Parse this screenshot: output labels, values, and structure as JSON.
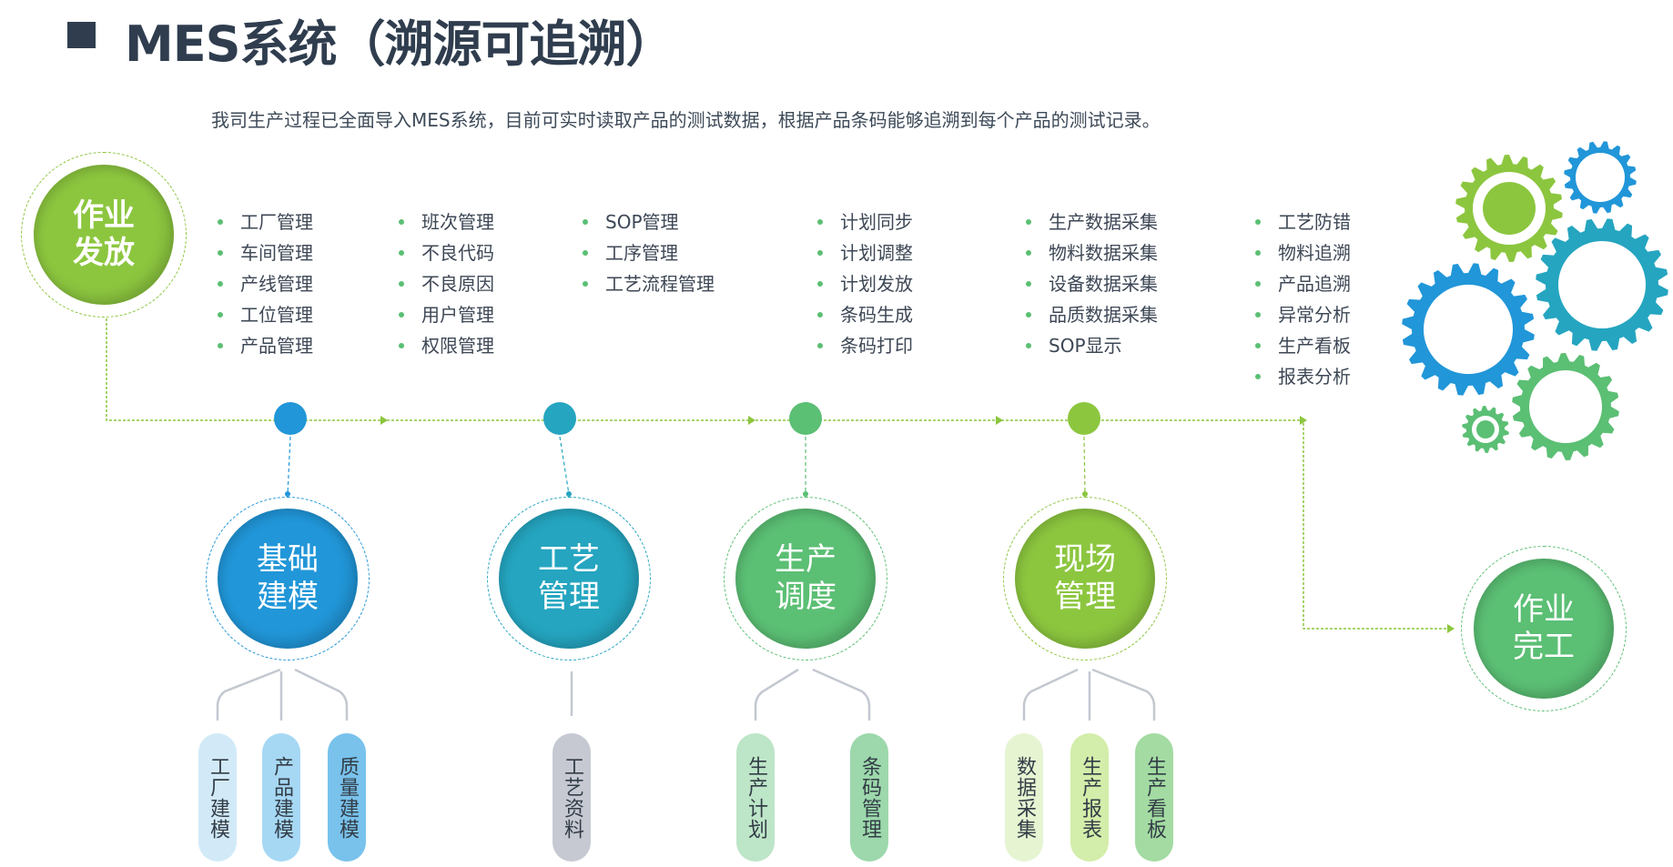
{
  "title": "MES系统（溯源可追溯）",
  "subtitle": "我司生产过程已全面导入MES系统，目前可实时读取产品的测试数据，根据产品条码能够追溯到每个产品的测试记录。",
  "start": {
    "label": "作业\n发放",
    "color": "#8cc63f"
  },
  "end": {
    "label": "作业\n完工",
    "color": "#5bbf74"
  },
  "columns": [
    [
      "工厂管理",
      "车间管理",
      "产线管理",
      "工位管理",
      "产品管理"
    ],
    [
      "班次管理",
      "不良代码",
      "不良原因",
      "用户管理",
      "权限管理"
    ],
    [
      "SOP管理",
      "工序管理",
      "工艺流程管理"
    ],
    [
      "计划同步",
      "计划调整",
      "计划发放",
      "条码生成",
      "条码打印"
    ],
    [
      "生产数据采集",
      "物料数据采集",
      "设备数据采集",
      "品质数据采集",
      "SOP显示"
    ],
    [
      "工艺防错",
      "物料追溯",
      "产品追溯",
      "异常分析",
      "生产看板",
      "报表分析"
    ]
  ],
  "stages": [
    {
      "label": "基础\n建模",
      "color": "#2196d8",
      "children": [
        {
          "label": "工厂建模",
          "color": "#d2eaf8"
        },
        {
          "label": "产品建模",
          "color": "#a6d8f4"
        },
        {
          "label": "质量建模",
          "color": "#78c2ec"
        }
      ]
    },
    {
      "label": "工艺\n管理",
      "color": "#25a5c0",
      "children": [
        {
          "label": "工艺资料",
          "color": "#c6c9d2"
        }
      ]
    },
    {
      "label": "生产\n调度",
      "color": "#5bbf74",
      "children": [
        {
          "label": "生产计划",
          "color": "#bde5c7"
        },
        {
          "label": "条码管理",
          "color": "#9cd8ab"
        }
      ]
    },
    {
      "label": "现场\n管理",
      "color": "#8cc63f",
      "children": [
        {
          "label": "数据采集",
          "color": "#e6f4d2"
        },
        {
          "label": "生产报表",
          "color": "#d3edaa"
        },
        {
          "label": "生产看板",
          "color": "#a3dba2"
        }
      ]
    }
  ],
  "connector_color": "#8cc63f",
  "branch_color": "#c3c8d0"
}
